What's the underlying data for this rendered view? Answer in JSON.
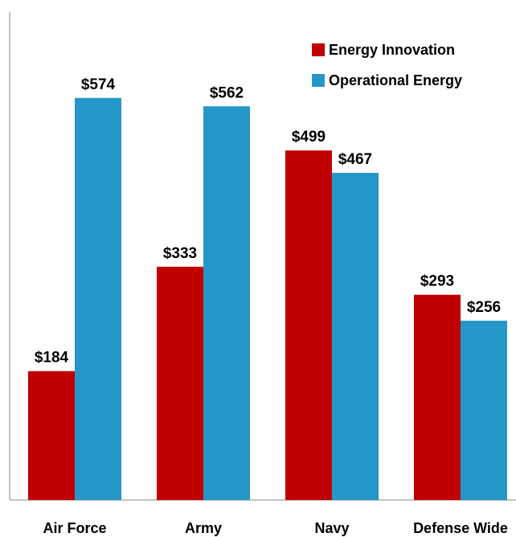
{
  "chart_data": {
    "type": "bar",
    "categories": [
      "Air Force",
      "Army",
      "Navy",
      "Defense Wide"
    ],
    "series": [
      {
        "name": "Energy Innovation",
        "color": "#c00000",
        "values": [
          184,
          333,
          499,
          293
        ],
        "value_labels": [
          "$184",
          "$333",
          "$499",
          "$293"
        ]
      },
      {
        "name": "Operational Energy",
        "color": "#2596c8",
        "values": [
          574,
          562,
          467,
          256
        ],
        "value_labels": [
          "$574",
          "$562",
          "$467",
          "$256"
        ]
      }
    ],
    "ylim": [
      0,
      700
    ],
    "grid": false,
    "legend": "upper right"
  }
}
